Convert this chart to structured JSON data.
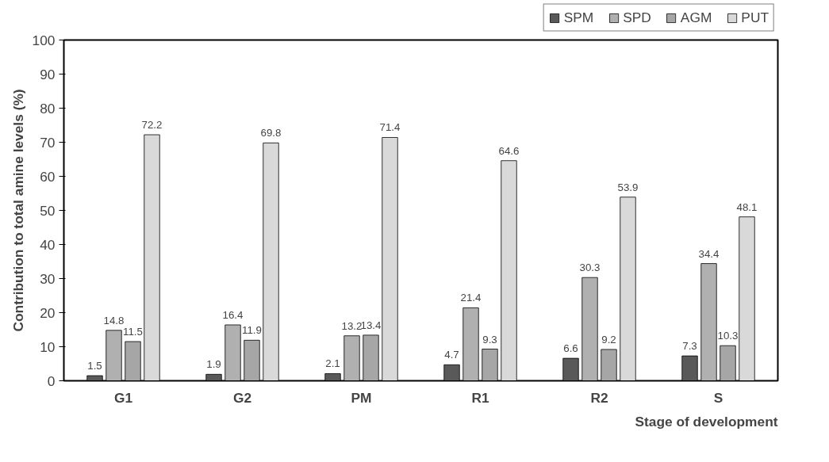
{
  "chart_data": {
    "type": "bar",
    "xlabel": "Stage of development",
    "ylabel": "Contribution to total amine levels (%)",
    "categories": [
      "G1",
      "G2",
      "PM",
      "R1",
      "R2",
      "S"
    ],
    "series": [
      {
        "name": "SPM",
        "color": "#595959",
        "values": [
          1.5,
          1.9,
          2.1,
          4.7,
          6.6,
          7.3
        ]
      },
      {
        "name": "SPD",
        "color": "#b0b0b0",
        "values": [
          14.8,
          16.4,
          13.2,
          21.4,
          30.3,
          34.4
        ]
      },
      {
        "name": "AGM",
        "color": "#a6a6a6",
        "values": [
          11.5,
          11.9,
          13.4,
          9.3,
          9.2,
          10.3
        ]
      },
      {
        "name": "PUT",
        "color": "#d9d9d9",
        "values": [
          72.2,
          69.8,
          71.4,
          64.6,
          53.9,
          48.1
        ]
      }
    ],
    "ylim": [
      0,
      100
    ],
    "yticks": [
      0,
      10,
      20,
      30,
      40,
      50,
      60,
      70,
      80,
      90,
      100
    ],
    "grid": false,
    "legend": "top right",
    "data_labels": true
  }
}
